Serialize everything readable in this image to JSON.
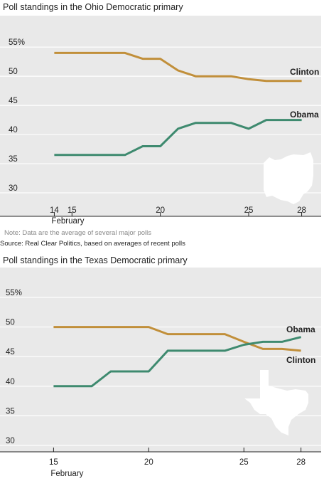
{
  "colors": {
    "clinton": "#c18f3a",
    "obama": "#3e8a6f",
    "panel": "#e9e9e9",
    "grid": "#ffffff",
    "state": "#ffffff"
  },
  "footnotes": {
    "note": "Note: Data are the average of several major polls",
    "source": "Source: Real Clear Politics, based on averages of recent polls"
  },
  "chart_data": [
    {
      "type": "line",
      "title": "Poll standings in the Ohio Democratic primary",
      "xlim": [
        13.5,
        28.5
      ],
      "ylim": [
        30,
        56
      ],
      "x_ticks": [
        14,
        15,
        20,
        25,
        28
      ],
      "x_tick_labels": [
        "14",
        "15",
        "20",
        "25",
        "28"
      ],
      "x_sublabel": "February",
      "y_ticks": [
        30,
        35,
        40,
        45,
        50,
        55
      ],
      "y_tick_labels": [
        "30",
        "35",
        "40",
        "45",
        "50",
        "55%"
      ],
      "series": [
        {
          "name": "Clinton",
          "color": "#c18f3a",
          "x": [
            14,
            18,
            19,
            20,
            21,
            22,
            24,
            25,
            26,
            28
          ],
          "y": [
            54,
            54,
            53,
            53,
            51,
            50,
            50,
            49.5,
            49.2,
            49.2
          ]
        },
        {
          "name": "Obama",
          "color": "#3e8a6f",
          "x": [
            14,
            18,
            19,
            20,
            21,
            22,
            24,
            25,
            26,
            28
          ],
          "y": [
            36.5,
            36.5,
            38,
            38,
            41,
            42,
            42,
            41,
            42.5,
            42.5
          ]
        }
      ],
      "state": "ohio"
    },
    {
      "type": "line",
      "title": "Poll standings in the Texas Democratic primary",
      "xlim": [
        14.5,
        28.5
      ],
      "ylim": [
        30,
        58
      ],
      "x_ticks": [
        15,
        20,
        25,
        28
      ],
      "x_tick_labels": [
        "15",
        "20",
        "25",
        "28"
      ],
      "x_sublabel": "February",
      "y_ticks": [
        30,
        35,
        40,
        45,
        50,
        55
      ],
      "y_tick_labels": [
        "30",
        "35",
        "40",
        "45",
        "50",
        "55%"
      ],
      "series": [
        {
          "name": "Clinton",
          "color": "#c18f3a",
          "x": [
            15,
            20,
            21,
            24,
            25,
            26,
            27,
            28
          ],
          "y": [
            50,
            50,
            48.8,
            48.8,
            47.5,
            46.3,
            46.3,
            46
          ]
        },
        {
          "name": "Obama",
          "color": "#3e8a6f",
          "x": [
            15,
            17,
            18,
            20,
            21,
            24,
            25,
            26,
            27,
            28
          ],
          "y": [
            40,
            40,
            42.5,
            42.5,
            46,
            46,
            47,
            47.5,
            47.5,
            48.3
          ]
        }
      ],
      "state": "texas"
    }
  ]
}
